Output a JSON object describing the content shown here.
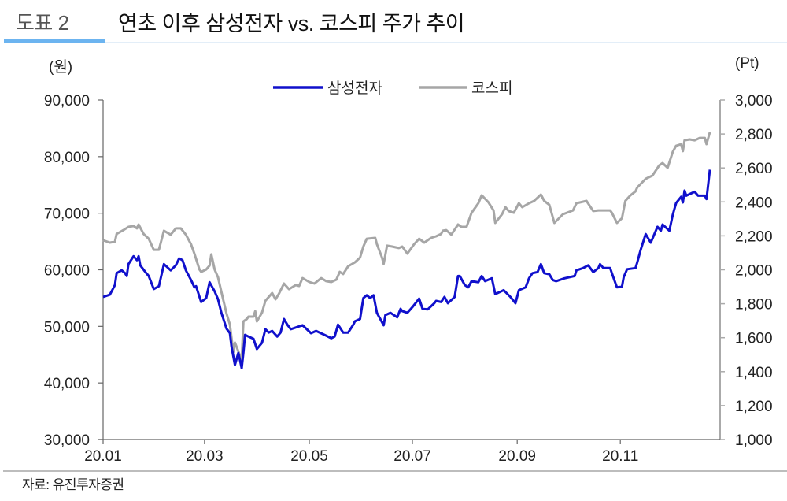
{
  "header": {
    "figure_label": "도표 2",
    "title": "연초 이후 삼성전자 vs. 코스피 주가 추이"
  },
  "units": {
    "left": "(원)",
    "right": "(Pt)"
  },
  "source": "자료: 유진투자증권",
  "colors": {
    "samsung": "#1010CC",
    "kospi": "#A6A6A6",
    "accent_bar": "#6CB4F0",
    "axis": "#666666",
    "right_axis": "#AAAAAA"
  },
  "chart_data": {
    "type": "line",
    "title": "연초 이후 삼성전자 vs. 코스피 주가 추이",
    "xlabel": "",
    "ylabel_left": "(원)",
    "ylabel_right": "(Pt)",
    "x_unit": "day index from 2020-01-02 (approx.)",
    "x_range": [
      0,
      359
    ],
    "x_ticks": [
      {
        "label": "20.01",
        "day": 0
      },
      {
        "label": "20.03",
        "day": 60
      },
      {
        "label": "20.05",
        "day": 122
      },
      {
        "label": "20.07",
        "day": 183
      },
      {
        "label": "20.09",
        "day": 245
      },
      {
        "label": "20.11",
        "day": 306
      }
    ],
    "ylim_left": [
      30000,
      90000
    ],
    "yticks_left": [
      "30,000",
      "40,000",
      "50,000",
      "60,000",
      "70,000",
      "80,000",
      "90,000"
    ],
    "ylim_right": [
      1000,
      3000
    ],
    "yticks_right": [
      "1,000",
      "1,200",
      "1,400",
      "1,600",
      "1,800",
      "2,000",
      "2,200",
      "2,400",
      "2,600",
      "2,800",
      "3,000"
    ],
    "grid": false,
    "legend": {
      "position": "top-center",
      "entries": [
        "삼성전자",
        "코스피"
      ]
    },
    "series": [
      {
        "name": "삼성전자",
        "axis": "left",
        "color": "#1010CC",
        "points": [
          [
            0,
            55200
          ],
          [
            4,
            55600
          ],
          [
            7,
            57300
          ],
          [
            8,
            59400
          ],
          [
            11,
            59900
          ],
          [
            13,
            59400
          ],
          [
            14,
            58900
          ],
          [
            15,
            61000
          ],
          [
            18,
            62400
          ],
          [
            20,
            61700
          ],
          [
            21,
            62400
          ],
          [
            22,
            60800
          ],
          [
            25,
            59600
          ],
          [
            27,
            58900
          ],
          [
            30,
            56600
          ],
          [
            33,
            57100
          ],
          [
            36,
            61000
          ],
          [
            40,
            59900
          ],
          [
            43,
            60800
          ],
          [
            45,
            62000
          ],
          [
            47,
            61700
          ],
          [
            49,
            59900
          ],
          [
            52,
            58200
          ],
          [
            54,
            56900
          ],
          [
            55,
            57100
          ],
          [
            58,
            54300
          ],
          [
            61,
            55000
          ],
          [
            63,
            57800
          ],
          [
            66,
            56200
          ],
          [
            68,
            54800
          ],
          [
            70,
            52400
          ],
          [
            73,
            49600
          ],
          [
            75,
            48800
          ],
          [
            76,
            46400
          ],
          [
            78,
            43200
          ],
          [
            80,
            45300
          ],
          [
            81,
            44000
          ],
          [
            82,
            42600
          ],
          [
            83,
            45400
          ],
          [
            84,
            48500
          ],
          [
            86,
            48200
          ],
          [
            89,
            47800
          ],
          [
            91,
            46000
          ],
          [
            94,
            47100
          ],
          [
            96,
            49500
          ],
          [
            98,
            48900
          ],
          [
            100,
            49200
          ],
          [
            103,
            48200
          ],
          [
            105,
            48900
          ],
          [
            107,
            51300
          ],
          [
            109,
            50300
          ],
          [
            111,
            49500
          ],
          [
            115,
            49900
          ],
          [
            118,
            50200
          ],
          [
            123,
            48800
          ],
          [
            126,
            49200
          ],
          [
            131,
            48500
          ],
          [
            135,
            47900
          ],
          [
            137,
            48200
          ],
          [
            139,
            50300
          ],
          [
            142,
            48900
          ],
          [
            145,
            48900
          ],
          [
            148,
            50300
          ],
          [
            149,
            50900
          ],
          [
            152,
            51300
          ],
          [
            154,
            55000
          ],
          [
            156,
            55500
          ],
          [
            158,
            55000
          ],
          [
            160,
            55500
          ],
          [
            162,
            52400
          ],
          [
            166,
            50200
          ],
          [
            167,
            52000
          ],
          [
            170,
            52400
          ],
          [
            174,
            51600
          ],
          [
            176,
            53100
          ],
          [
            177,
            52700
          ],
          [
            180,
            52400
          ],
          [
            183,
            53400
          ],
          [
            187,
            54900
          ],
          [
            189,
            53100
          ],
          [
            192,
            53000
          ],
          [
            196,
            54100
          ],
          [
            197,
            54500
          ],
          [
            200,
            54300
          ],
          [
            202,
            55200
          ],
          [
            204,
            54100
          ],
          [
            208,
            55200
          ],
          [
            210,
            58900
          ],
          [
            211,
            58900
          ],
          [
            214,
            57300
          ],
          [
            216,
            56900
          ],
          [
            218,
            58000
          ],
          [
            222,
            57800
          ],
          [
            224,
            58900
          ],
          [
            226,
            58000
          ],
          [
            230,
            58500
          ],
          [
            232,
            55700
          ],
          [
            237,
            56400
          ],
          [
            241,
            55200
          ],
          [
            244,
            54100
          ],
          [
            246,
            56400
          ],
          [
            250,
            56900
          ],
          [
            252,
            58500
          ],
          [
            254,
            59400
          ],
          [
            257,
            59600
          ],
          [
            259,
            61000
          ],
          [
            261,
            59400
          ],
          [
            264,
            59200
          ],
          [
            266,
            58200
          ],
          [
            268,
            58000
          ],
          [
            273,
            58500
          ],
          [
            279,
            58900
          ],
          [
            280,
            59900
          ],
          [
            284,
            60300
          ],
          [
            287,
            60800
          ],
          [
            290,
            59600
          ],
          [
            293,
            60300
          ],
          [
            294,
            61000
          ],
          [
            296,
            60300
          ],
          [
            300,
            60300
          ],
          [
            301,
            59400
          ],
          [
            304,
            56900
          ],
          [
            307,
            57000
          ],
          [
            308,
            58700
          ],
          [
            310,
            60100
          ],
          [
            315,
            60300
          ],
          [
            316,
            61300
          ],
          [
            318,
            63500
          ],
          [
            321,
            66300
          ],
          [
            324,
            64800
          ],
          [
            328,
            67600
          ],
          [
            330,
            66900
          ],
          [
            331,
            68000
          ],
          [
            335,
            66900
          ],
          [
            337,
            69700
          ],
          [
            339,
            71800
          ],
          [
            342,
            72900
          ],
          [
            343,
            71900
          ],
          [
            344,
            74000
          ],
          [
            345,
            73100
          ],
          [
            350,
            73800
          ],
          [
            352,
            73100
          ],
          [
            356,
            73100
          ],
          [
            357,
            72500
          ],
          [
            359,
            77700
          ]
        ]
      },
      {
        "name": "코스피",
        "axis": "right",
        "color": "#A6A6A6",
        "points": [
          [
            0,
            2174
          ],
          [
            4,
            2160
          ],
          [
            7,
            2165
          ],
          [
            8,
            2211
          ],
          [
            12,
            2234
          ],
          [
            15,
            2253
          ],
          [
            18,
            2258
          ],
          [
            20,
            2244
          ],
          [
            21,
            2267
          ],
          [
            24,
            2211
          ],
          [
            27,
            2183
          ],
          [
            30,
            2118
          ],
          [
            33,
            2118
          ],
          [
            36,
            2230
          ],
          [
            40,
            2207
          ],
          [
            43,
            2244
          ],
          [
            46,
            2244
          ],
          [
            49,
            2207
          ],
          [
            52,
            2151
          ],
          [
            54,
            2095
          ],
          [
            57,
            2002
          ],
          [
            58,
            1988
          ],
          [
            61,
            2002
          ],
          [
            63,
            2025
          ],
          [
            64,
            2091
          ],
          [
            66,
            2002
          ],
          [
            68,
            1956
          ],
          [
            71,
            1826
          ],
          [
            73,
            1743
          ],
          [
            75,
            1678
          ],
          [
            77,
            1515
          ],
          [
            78,
            1571
          ],
          [
            82,
            1469
          ],
          [
            83,
            1696
          ],
          [
            85,
            1710
          ],
          [
            86,
            1724
          ],
          [
            89,
            1724
          ],
          [
            90,
            1756
          ],
          [
            91,
            1696
          ],
          [
            94,
            1747
          ],
          [
            96,
            1817
          ],
          [
            100,
            1863
          ],
          [
            102,
            1826
          ],
          [
            104,
            1859
          ],
          [
            107,
            1919
          ],
          [
            110,
            1886
          ],
          [
            114,
            1910
          ],
          [
            116,
            1905
          ],
          [
            118,
            1951
          ],
          [
            122,
            1928
          ],
          [
            125,
            1919
          ],
          [
            129,
            1951
          ],
          [
            132,
            1933
          ],
          [
            135,
            1928
          ],
          [
            138,
            1942
          ],
          [
            140,
            1988
          ],
          [
            142,
            1975
          ],
          [
            145,
            2021
          ],
          [
            149,
            2044
          ],
          [
            152,
            2072
          ],
          [
            154,
            2137
          ],
          [
            156,
            2183
          ],
          [
            161,
            2188
          ],
          [
            162,
            2151
          ],
          [
            165,
            2072
          ],
          [
            166,
            2035
          ],
          [
            168,
            2142
          ],
          [
            171,
            2137
          ],
          [
            175,
            2128
          ],
          [
            177,
            2137
          ],
          [
            180,
            2095
          ],
          [
            184,
            2151
          ],
          [
            187,
            2183
          ],
          [
            190,
            2160
          ],
          [
            194,
            2188
          ],
          [
            197,
            2197
          ],
          [
            200,
            2211
          ],
          [
            201,
            2230
          ],
          [
            203,
            2234
          ],
          [
            206,
            2207
          ],
          [
            210,
            2267
          ],
          [
            212,
            2253
          ],
          [
            215,
            2253
          ],
          [
            218,
            2336
          ],
          [
            222,
            2392
          ],
          [
            224,
            2439
          ],
          [
            228,
            2397
          ],
          [
            231,
            2350
          ],
          [
            232,
            2276
          ],
          [
            236,
            2327
          ],
          [
            238,
            2369
          ],
          [
            240,
            2346
          ],
          [
            243,
            2336
          ],
          [
            246,
            2392
          ],
          [
            248,
            2369
          ],
          [
            252,
            2392
          ],
          [
            255,
            2406
          ],
          [
            259,
            2443
          ],
          [
            261,
            2406
          ],
          [
            264,
            2383
          ],
          [
            267,
            2276
          ],
          [
            272,
            2327
          ],
          [
            278,
            2350
          ],
          [
            280,
            2392
          ],
          [
            286,
            2406
          ],
          [
            290,
            2346
          ],
          [
            293,
            2350
          ],
          [
            296,
            2350
          ],
          [
            300,
            2350
          ],
          [
            301,
            2336
          ],
          [
            304,
            2276
          ],
          [
            307,
            2304
          ],
          [
            309,
            2406
          ],
          [
            312,
            2439
          ],
          [
            315,
            2462
          ],
          [
            316,
            2485
          ],
          [
            321,
            2536
          ],
          [
            325,
            2555
          ],
          [
            329,
            2615
          ],
          [
            331,
            2629
          ],
          [
            334,
            2601
          ],
          [
            337,
            2694
          ],
          [
            339,
            2731
          ],
          [
            342,
            2740
          ],
          [
            343,
            2699
          ],
          [
            344,
            2763
          ],
          [
            347,
            2768
          ],
          [
            350,
            2763
          ],
          [
            353,
            2777
          ],
          [
            356,
            2777
          ],
          [
            357,
            2740
          ],
          [
            359,
            2810
          ]
        ]
      }
    ]
  }
}
